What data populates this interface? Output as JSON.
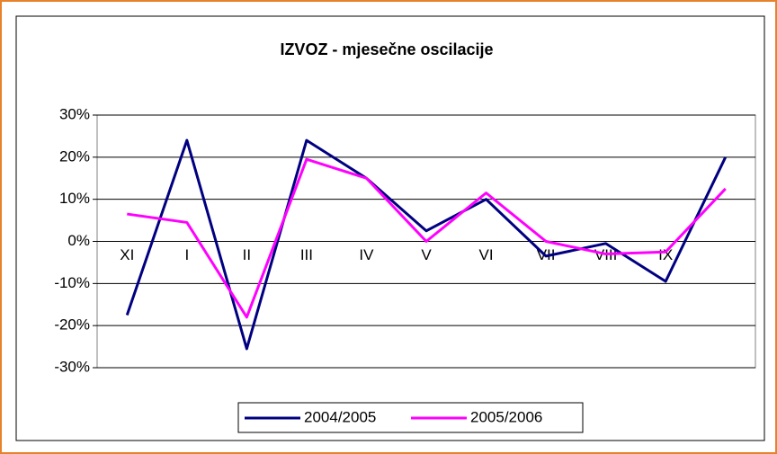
{
  "chart_data": {
    "type": "line",
    "title": "IZVOZ - mjesečne oscilacije",
    "categories": [
      "XI",
      "I",
      "II",
      "III",
      "IV",
      "V",
      "VI",
      "VII",
      "VIII",
      "IX",
      null
    ],
    "series": [
      {
        "name": "2004/2005",
        "color": "#000080",
        "values": [
          -17.5,
          24,
          -25.5,
          24,
          15,
          2.5,
          10,
          -3.5,
          -0.5,
          -9.5,
          20
        ]
      },
      {
        "name": "2005/2006",
        "color": "#ff00ff",
        "values": [
          6.5,
          4.5,
          -18,
          19.5,
          15,
          0,
          11.5,
          0,
          -3,
          -2.5,
          12.5
        ]
      }
    ],
    "ylim": [
      -30,
      30
    ],
    "yticks": [
      {
        "value": -30,
        "label": "-30%"
      },
      {
        "value": -20,
        "label": "-20%"
      },
      {
        "value": -10,
        "label": "-10%"
      },
      {
        "value": 0,
        "label": "0%"
      },
      {
        "value": 10,
        "label": "10%"
      },
      {
        "value": 20,
        "label": "20%"
      },
      {
        "value": 30,
        "label": "30%"
      }
    ],
    "grid": true,
    "legend": "bottom"
  }
}
